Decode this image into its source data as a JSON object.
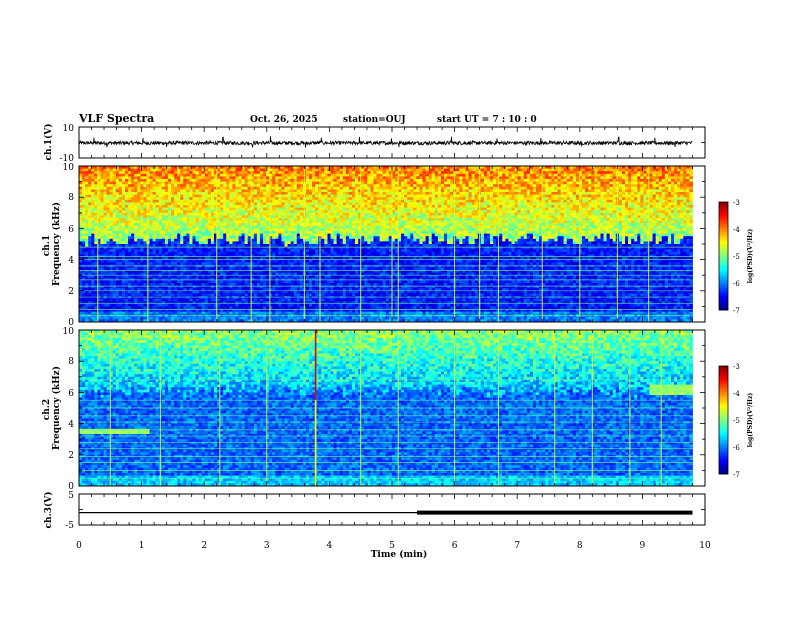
{
  "header": {
    "title": "VLF Spectra",
    "date": "Oct. 26, 2025",
    "station": "station=OUJ",
    "start_ut": "start UT =  7 : 10 : 0"
  },
  "chart_data": [
    {
      "type": "line",
      "id": "ch1-waveform",
      "ylabel": "ch.1(V)",
      "ylim": [
        -10,
        10
      ],
      "yticks": [
        "10",
        "-10"
      ],
      "xlim": [
        0,
        10
      ],
      "data_end_min": 9.8,
      "baseline_v": -0.3,
      "noise_amp_v": 1.2,
      "spikes_v": [
        {
          "x": 0.24,
          "y": 3.2
        },
        {
          "x": 0.45,
          "y": -3.0
        },
        {
          "x": 1.02,
          "y": 2.9
        },
        {
          "x": 1.4,
          "y": -2.8
        },
        {
          "x": 2.3,
          "y": 3.5
        },
        {
          "x": 2.77,
          "y": -3.2
        },
        {
          "x": 3.06,
          "y": 4.0
        },
        {
          "x": 3.62,
          "y": -3.3
        },
        {
          "x": 3.87,
          "y": 3.1
        },
        {
          "x": 4.48,
          "y": 3.6
        },
        {
          "x": 4.99,
          "y": 2.7
        },
        {
          "x": 5.11,
          "y": -3.0
        },
        {
          "x": 5.95,
          "y": 3.8
        },
        {
          "x": 6.68,
          "y": 2.5
        },
        {
          "x": 7.38,
          "y": 2.9
        },
        {
          "x": 8.03,
          "y": -2.6
        },
        {
          "x": 8.62,
          "y": 3.4
        },
        {
          "x": 9.2,
          "y": 3.1
        },
        {
          "x": 9.52,
          "y": -2.9
        }
      ]
    },
    {
      "type": "heatmap",
      "id": "ch1-spectrogram",
      "ylabel": "ch.1\nFrequency (kHz)",
      "ylim": [
        0,
        10
      ],
      "yticks": [
        "0",
        "2",
        "4",
        "6",
        "8",
        "10"
      ],
      "xlim": [
        0,
        10
      ],
      "data_end_min": 9.8,
      "colorbar": {
        "label": "log(PSD)(V²/Hz)",
        "range": [
          -7,
          -3
        ],
        "ticks": [
          "-3",
          "-4",
          "-5",
          "-6",
          "-7"
        ]
      },
      "noise_floor_level": -6.4,
      "high_band_level": -4.3,
      "band_top_khz": 5.3,
      "horizontal_lines_khz": [
        0.4,
        0.8,
        1.2,
        1.6,
        2.0,
        2.3,
        2.7,
        3.0,
        3.3,
        3.6,
        4.0,
        4.2,
        4.8
      ],
      "vertical_spikes_min": [
        0.3,
        1.1,
        2.2,
        2.75,
        3.05,
        3.6,
        3.85,
        4.5,
        5.0,
        5.1,
        6.0,
        6.4,
        6.7,
        7.4,
        8.0,
        8.6,
        9.1
      ]
    },
    {
      "type": "heatmap",
      "id": "ch2-spectrogram",
      "ylabel": "ch.2\nFrequency (kHz)",
      "ylim": [
        0,
        10
      ],
      "yticks": [
        "0",
        "2",
        "4",
        "6",
        "8",
        "10"
      ],
      "xlim": [
        0,
        10
      ],
      "data_end_min": 9.8,
      "colorbar": {
        "label": "log(PSD)(V²/Hz)",
        "range": [
          -7,
          -3
        ],
        "ticks": [
          "-3",
          "-4",
          "-5",
          "-6",
          "-7"
        ]
      },
      "noise_floor_level": -6.1,
      "high_band_level": -5.2,
      "band_top_khz": 6.0,
      "horizontal_lines_khz": [
        0.5,
        1.0,
        1.5,
        1.9,
        2.4,
        2.8,
        3.2,
        3.6,
        4.1,
        4.5,
        5.0,
        5.5,
        6.8
      ],
      "vertical_spikes_min": [
        0.5,
        1.3,
        2.25,
        3.0,
        3.78,
        4.5,
        5.1,
        6.0,
        6.7,
        7.6,
        8.2,
        8.8,
        9.3
      ],
      "bright_lines_min": [
        3.78
      ],
      "tone_patches": [
        {
          "t0": 0.0,
          "t1": 1.15,
          "f0": 3.3,
          "f1": 3.7,
          "level": -4.9
        },
        {
          "t0": 9.1,
          "t1": 9.8,
          "f0": 5.9,
          "f1": 6.5,
          "level": -4.9
        }
      ]
    },
    {
      "type": "line",
      "id": "ch3-signal",
      "ylabel": "ch.3(V)",
      "ylim": [
        -5,
        5
      ],
      "yticks": [
        "5",
        "-5"
      ],
      "xlim": [
        0,
        10
      ],
      "xticks": [
        "0",
        "1",
        "2",
        "3",
        "4",
        "5",
        "6",
        "7",
        "8",
        "9",
        "10"
      ],
      "xlabel": "Time (min)",
      "data_end_min": 9.8,
      "level_v": -1.0,
      "thick_from_min": 5.4
    }
  ]
}
